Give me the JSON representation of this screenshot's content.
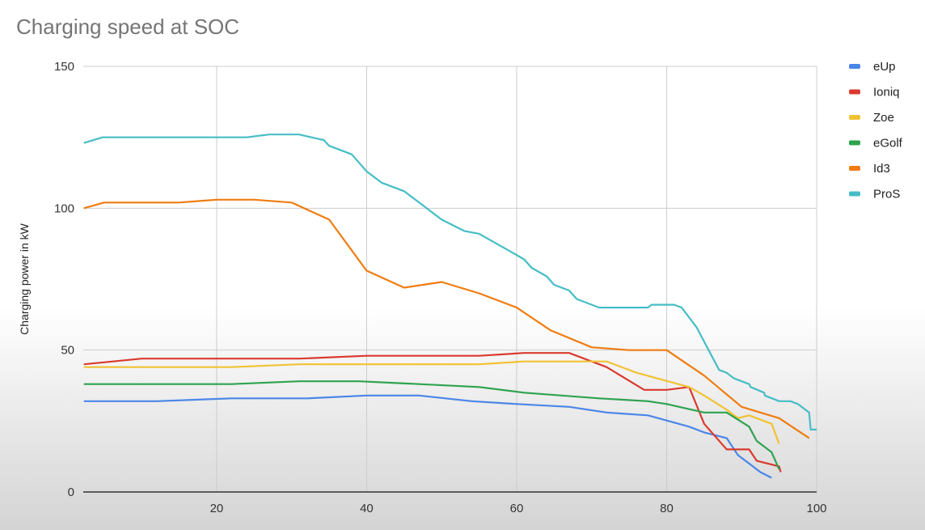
{
  "chart_data": {
    "type": "line",
    "title": "Charging speed at SOC",
    "xlabel": "",
    "ylabel": "Charging power in kW",
    "xlim": [
      2.2,
      100
    ],
    "ylim": [
      0,
      150
    ],
    "xticks": [
      20,
      40,
      60,
      80,
      100
    ],
    "yticks": [
      0,
      50,
      100,
      150
    ],
    "grid": true,
    "legend_position": "right",
    "series": [
      {
        "name": "eUp",
        "color": "#4a86e8",
        "points": [
          [
            2.3,
            32
          ],
          [
            12,
            32
          ],
          [
            22,
            33
          ],
          [
            32,
            33
          ],
          [
            40,
            34
          ],
          [
            47,
            34
          ],
          [
            54,
            32
          ],
          [
            60,
            31
          ],
          [
            67,
            30
          ],
          [
            72,
            28
          ],
          [
            77.5,
            27
          ],
          [
            83,
            23
          ],
          [
            85,
            21
          ],
          [
            88,
            19
          ],
          [
            89.5,
            13
          ],
          [
            91,
            10
          ],
          [
            92.5,
            7
          ],
          [
            94,
            5
          ]
        ]
      },
      {
        "name": "Ioniq",
        "color": "#d93a2f",
        "points": [
          [
            2.3,
            45
          ],
          [
            10,
            47
          ],
          [
            31,
            47
          ],
          [
            40,
            48
          ],
          [
            55,
            48
          ],
          [
            61,
            49
          ],
          [
            67,
            49
          ],
          [
            72,
            44
          ],
          [
            77,
            36
          ],
          [
            80,
            36
          ],
          [
            83,
            37
          ],
          [
            85,
            24
          ],
          [
            88,
            15
          ],
          [
            91,
            15
          ],
          [
            92,
            11
          ],
          [
            95,
            9
          ],
          [
            95.2,
            7
          ]
        ]
      },
      {
        "name": "Zoe",
        "color": "#f1c232",
        "points": [
          [
            2.3,
            44
          ],
          [
            22,
            44
          ],
          [
            31,
            45
          ],
          [
            55,
            45
          ],
          [
            61,
            46
          ],
          [
            72,
            46
          ],
          [
            76,
            42
          ],
          [
            83,
            37
          ],
          [
            85,
            34
          ],
          [
            88,
            29
          ],
          [
            89.5,
            26
          ],
          [
            91,
            27
          ],
          [
            94,
            24
          ],
          [
            95,
            17
          ]
        ]
      },
      {
        "name": "eGolf",
        "color": "#2ea34f",
        "points": [
          [
            2.3,
            38
          ],
          [
            22,
            38
          ],
          [
            31,
            39
          ],
          [
            39,
            39
          ],
          [
            47,
            38
          ],
          [
            55,
            37
          ],
          [
            61,
            35
          ],
          [
            71,
            33
          ],
          [
            77.5,
            32
          ],
          [
            80,
            31
          ],
          [
            85,
            28
          ],
          [
            88,
            28
          ],
          [
            91,
            23
          ],
          [
            92,
            18
          ],
          [
            94,
            14
          ],
          [
            95,
            8
          ]
        ]
      },
      {
        "name": "Id3",
        "color": "#f07c10",
        "points": [
          [
            2.3,
            100
          ],
          [
            5,
            102
          ],
          [
            15,
            102
          ],
          [
            20,
            103
          ],
          [
            25,
            103
          ],
          [
            30,
            102
          ],
          [
            35,
            96
          ],
          [
            40,
            78
          ],
          [
            45,
            72
          ],
          [
            50,
            74
          ],
          [
            55,
            70
          ],
          [
            60,
            65
          ],
          [
            64.5,
            57
          ],
          [
            70,
            51
          ],
          [
            75,
            50
          ],
          [
            80,
            50
          ],
          [
            85,
            41
          ],
          [
            90,
            30
          ],
          [
            95,
            26
          ],
          [
            99,
            19
          ]
        ]
      },
      {
        "name": "ProS",
        "color": "#46bdc6",
        "points": [
          [
            2.3,
            123
          ],
          [
            4.8,
            125
          ],
          [
            24,
            125
          ],
          [
            27,
            126
          ],
          [
            31,
            126
          ],
          [
            34.3,
            124
          ],
          [
            35,
            122
          ],
          [
            38,
            119
          ],
          [
            40,
            113
          ],
          [
            42,
            109
          ],
          [
            45,
            106
          ],
          [
            47,
            102
          ],
          [
            50,
            96
          ],
          [
            53,
            92
          ],
          [
            55,
            91
          ],
          [
            59,
            85
          ],
          [
            61,
            82
          ],
          [
            62,
            79
          ],
          [
            64,
            76
          ],
          [
            65,
            73
          ],
          [
            67,
            71
          ],
          [
            68,
            68
          ],
          [
            71,
            65
          ],
          [
            77.5,
            65
          ],
          [
            78,
            66
          ],
          [
            81,
            66
          ],
          [
            82,
            65
          ],
          [
            84,
            58
          ],
          [
            86,
            48
          ],
          [
            87,
            43
          ],
          [
            88,
            42
          ],
          [
            89,
            40
          ],
          [
            91,
            38
          ],
          [
            91.2,
            37
          ],
          [
            93,
            35
          ],
          [
            93.1,
            34
          ],
          [
            95,
            32
          ],
          [
            96.5,
            32
          ],
          [
            97.5,
            31
          ],
          [
            98,
            30
          ],
          [
            99,
            28
          ],
          [
            99.2,
            22
          ],
          [
            100,
            22
          ]
        ]
      }
    ]
  }
}
